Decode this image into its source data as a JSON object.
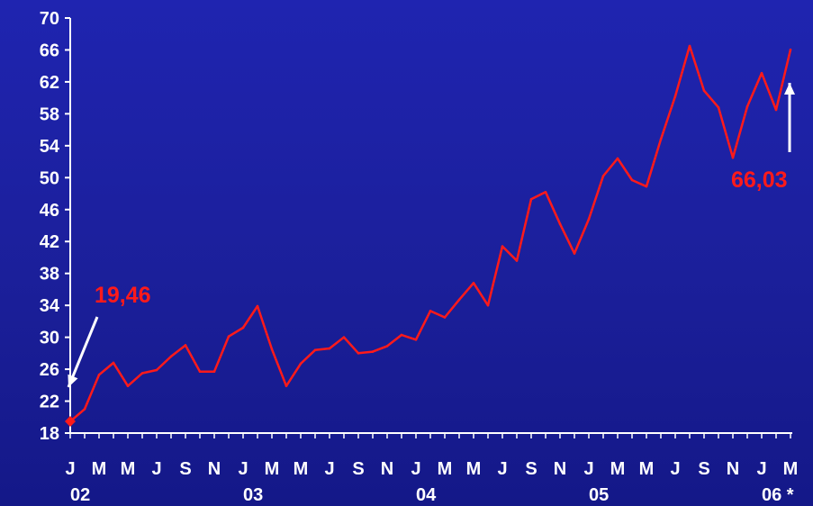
{
  "chart_data": {
    "type": "line",
    "ylim": [
      18,
      70
    ],
    "yticks": [
      18,
      22,
      26,
      30,
      34,
      38,
      42,
      46,
      50,
      54,
      58,
      62,
      66,
      70
    ],
    "grid": false,
    "x_month_labels": [
      {
        "label": "J",
        "month_index": 0
      },
      {
        "label": "M",
        "month_index": 2
      },
      {
        "label": "M",
        "month_index": 4
      },
      {
        "label": "J",
        "month_index": 6
      },
      {
        "label": "S",
        "month_index": 8
      },
      {
        "label": "N",
        "month_index": 10
      },
      {
        "label": "J",
        "month_index": 12
      },
      {
        "label": "M",
        "month_index": 14
      },
      {
        "label": "M",
        "month_index": 16
      },
      {
        "label": "J",
        "month_index": 18
      },
      {
        "label": "S",
        "month_index": 20
      },
      {
        "label": "N",
        "month_index": 22
      },
      {
        "label": "J",
        "month_index": 24
      },
      {
        "label": "M",
        "month_index": 26
      },
      {
        "label": "M",
        "month_index": 28
      },
      {
        "label": "J",
        "month_index": 30
      },
      {
        "label": "S",
        "month_index": 32
      },
      {
        "label": "N",
        "month_index": 34
      },
      {
        "label": "J",
        "month_index": 36
      },
      {
        "label": "M",
        "month_index": 38
      },
      {
        "label": "M",
        "month_index": 40
      },
      {
        "label": "J",
        "month_index": 42
      },
      {
        "label": "S",
        "month_index": 44
      },
      {
        "label": "N",
        "month_index": 46
      },
      {
        "label": "J",
        "month_index": 48
      },
      {
        "label": "M",
        "month_index": 50
      }
    ],
    "x_year_labels": [
      {
        "label": "02",
        "month_index": 0
      },
      {
        "label": "03",
        "month_index": 12
      },
      {
        "label": "04",
        "month_index": 24
      },
      {
        "label": "05",
        "month_index": 36
      },
      {
        "label": "06 *",
        "month_index": 48
      }
    ],
    "series": [
      {
        "color": "#ff1a1a",
        "values": [
          19.46,
          21.0,
          25.3,
          26.8,
          23.9,
          25.5,
          25.9,
          27.6,
          29.0,
          25.7,
          25.7,
          30.1,
          31.2,
          33.9,
          28.5,
          23.9,
          26.7,
          28.4,
          28.6,
          30.0,
          28.0,
          28.2,
          28.9,
          30.3,
          29.7,
          33.3,
          32.5,
          34.7,
          36.8,
          34.0,
          41.4,
          39.6,
          47.3,
          48.2,
          44.2,
          40.5,
          44.8,
          50.2,
          52.4,
          49.7,
          48.9,
          54.8,
          60.2,
          66.5,
          60.9,
          58.8,
          52.5,
          58.9,
          63.1,
          58.5,
          66.03
        ]
      }
    ],
    "annotations": [
      {
        "text": "19,46",
        "month_index": 0,
        "value": 19.46
      },
      {
        "text": "66,03",
        "month_index": 50,
        "value": 66.03
      }
    ],
    "colors": {
      "background": "#1b1f9a",
      "axis": "#ffffff",
      "line": "#ff1a1a",
      "label": "#ffffff",
      "annotation": "#ff1a1a",
      "arrow": "#ffffff"
    }
  }
}
